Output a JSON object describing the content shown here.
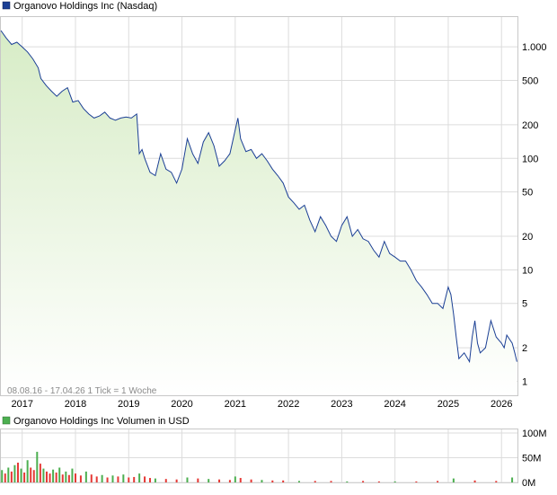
{
  "chart_data": [
    {
      "type": "line",
      "title": "Organovo Holdings Inc (Nasdaq)",
      "scale": "log",
      "y_ticks": [
        1,
        2,
        5,
        10,
        20,
        50,
        100,
        200,
        500,
        1000
      ],
      "y_tick_labels": [
        "1",
        "2",
        "5",
        "10",
        "20",
        "50",
        "100",
        "200",
        "500",
        "1.000"
      ],
      "ylim": [
        0.75,
        1850
      ],
      "x_range": [
        2016.6,
        2026.3
      ],
      "x_ticks": [
        2017,
        2018,
        2019,
        2020,
        2021,
        2022,
        2023,
        2024,
        2025,
        2026
      ],
      "x_tick_labels": [
        "2017",
        "2018",
        "2019",
        "2020",
        "2021",
        "2022",
        "2023",
        "2024",
        "2025",
        "2026"
      ],
      "grid": true,
      "colors": {
        "line": "#1b3f95",
        "fill_top": "#d7ecc6",
        "fill_bottom": "#ffffff",
        "legend": "#1b3f95",
        "grid": "#dcdcdc"
      },
      "series": [
        {
          "name": "Organovo Holdings Inc (Nasdaq)",
          "x": [
            2016.6,
            2016.7,
            2016.8,
            2016.9,
            2017.0,
            2017.1,
            2017.2,
            2017.3,
            2017.35,
            2017.45,
            2017.55,
            2017.65,
            2017.75,
            2017.85,
            2017.95,
            2018.05,
            2018.15,
            2018.25,
            2018.35,
            2018.45,
            2018.55,
            2018.65,
            2018.75,
            2018.85,
            2018.95,
            2019.05,
            2019.15,
            2019.2,
            2019.25,
            2019.3,
            2019.4,
            2019.5,
            2019.6,
            2019.7,
            2019.8,
            2019.9,
            2020.0,
            2020.1,
            2020.2,
            2020.3,
            2020.4,
            2020.5,
            2020.6,
            2020.7,
            2020.8,
            2020.9,
            2021.0,
            2021.05,
            2021.1,
            2021.2,
            2021.3,
            2021.4,
            2021.5,
            2021.6,
            2021.7,
            2021.8,
            2021.9,
            2022.0,
            2022.1,
            2022.2,
            2022.3,
            2022.4,
            2022.5,
            2022.6,
            2022.7,
            2022.8,
            2022.9,
            2023.0,
            2023.1,
            2023.2,
            2023.3,
            2023.4,
            2023.5,
            2023.6,
            2023.7,
            2023.8,
            2023.9,
            2024.0,
            2024.1,
            2024.2,
            2024.3,
            2024.4,
            2024.5,
            2024.6,
            2024.7,
            2024.8,
            2024.9,
            2025.0,
            2025.05,
            2025.1,
            2025.15,
            2025.2,
            2025.3,
            2025.4,
            2025.45,
            2025.5,
            2025.55,
            2025.6,
            2025.7,
            2025.8,
            2025.9,
            2026.0,
            2026.05,
            2026.1,
            2026.2,
            2026.25,
            2026.29
          ],
          "values": [
            1400,
            1200,
            1050,
            1100,
            1000,
            900,
            780,
            650,
            520,
            450,
            400,
            360,
            400,
            430,
            320,
            330,
            280,
            250,
            230,
            240,
            260,
            230,
            220,
            230,
            235,
            230,
            250,
            110,
            120,
            100,
            75,
            70,
            110,
            80,
            75,
            60,
            80,
            150,
            110,
            90,
            140,
            170,
            130,
            85,
            95,
            110,
            180,
            230,
            150,
            115,
            120,
            100,
            110,
            95,
            80,
            70,
            60,
            45,
            40,
            35,
            38,
            28,
            22,
            30,
            25,
            20,
            18,
            25,
            30,
            20,
            23,
            19,
            18,
            15,
            13,
            18,
            14,
            13,
            12,
            12,
            10,
            8,
            7,
            6,
            5,
            5,
            4.5,
            7,
            6,
            4,
            2.5,
            1.6,
            1.8,
            1.5,
            2.5,
            3.5,
            2.2,
            1.8,
            2.0,
            3.5,
            2.5,
            2.2,
            2.0,
            2.6,
            2.2,
            1.8,
            1.5
          ]
        }
      ],
      "annotation": "08.08.16 - 17.04.26   1 Tick = 1 Woche"
    },
    {
      "type": "bar",
      "title": "Organovo Holdings Inc Volumen in USD",
      "y_ticks": [
        0,
        50,
        100
      ],
      "y_tick_labels": [
        "0M",
        "50M",
        "100M"
      ],
      "ylim": [
        0,
        100
      ],
      "unit": "M",
      "colors": {
        "up": "#4caf50",
        "down": "#e53935",
        "legend": "#4caf50"
      },
      "series": [
        {
          "name": "Organovo Holdings Inc Volumen in USD",
          "x": [
            2016.62,
            2016.68,
            2016.74,
            2016.8,
            2016.86,
            2016.92,
            2016.98,
            2017.04,
            2017.1,
            2017.16,
            2017.22,
            2017.28,
            2017.34,
            2017.4,
            2017.46,
            2017.52,
            2017.58,
            2017.64,
            2017.7,
            2017.76,
            2017.82,
            2017.88,
            2017.94,
            2018.0,
            2018.1,
            2018.2,
            2018.3,
            2018.4,
            2018.5,
            2018.6,
            2018.7,
            2018.8,
            2018.9,
            2019.0,
            2019.1,
            2019.2,
            2019.3,
            2019.4,
            2019.5,
            2019.7,
            2019.9,
            2020.1,
            2020.3,
            2020.5,
            2020.7,
            2020.9,
            2021.0,
            2021.1,
            2021.3,
            2021.5,
            2021.7,
            2021.9,
            2022.2,
            2022.5,
            2022.8,
            2023.1,
            2023.4,
            2023.7,
            2024.0,
            2024.4,
            2024.8,
            2025.1,
            2025.5,
            2025.9,
            2026.2
          ],
          "values": [
            25,
            18,
            30,
            22,
            35,
            40,
            28,
            20,
            45,
            30,
            25,
            62,
            38,
            28,
            22,
            18,
            26,
            20,
            30,
            16,
            22,
            15,
            28,
            18,
            14,
            22,
            16,
            12,
            15,
            10,
            14,
            12,
            16,
            10,
            11,
            18,
            12,
            9,
            8,
            7,
            6,
            10,
            8,
            7,
            6,
            5,
            12,
            9,
            6,
            5,
            4,
            4,
            3,
            3,
            3,
            2,
            3,
            2,
            2,
            2,
            3,
            8,
            4,
            3,
            10
          ],
          "direction": [
            "up",
            "down",
            "up",
            "down",
            "up",
            "down",
            "up",
            "down",
            "up",
            "down",
            "down",
            "up",
            "down",
            "up",
            "down",
            "down",
            "up",
            "down",
            "up",
            "down",
            "up",
            "down",
            "up",
            "down",
            "down",
            "up",
            "down",
            "down",
            "up",
            "down",
            "up",
            "down",
            "up",
            "down",
            "down",
            "up",
            "down",
            "down",
            "up",
            "down",
            "down",
            "up",
            "down",
            "up",
            "down",
            "down",
            "up",
            "down",
            "down",
            "up",
            "down",
            "down",
            "up",
            "down",
            "down",
            "up",
            "down",
            "down",
            "up",
            "down",
            "down",
            "up",
            "down",
            "down",
            "up"
          ]
        }
      ]
    }
  ]
}
